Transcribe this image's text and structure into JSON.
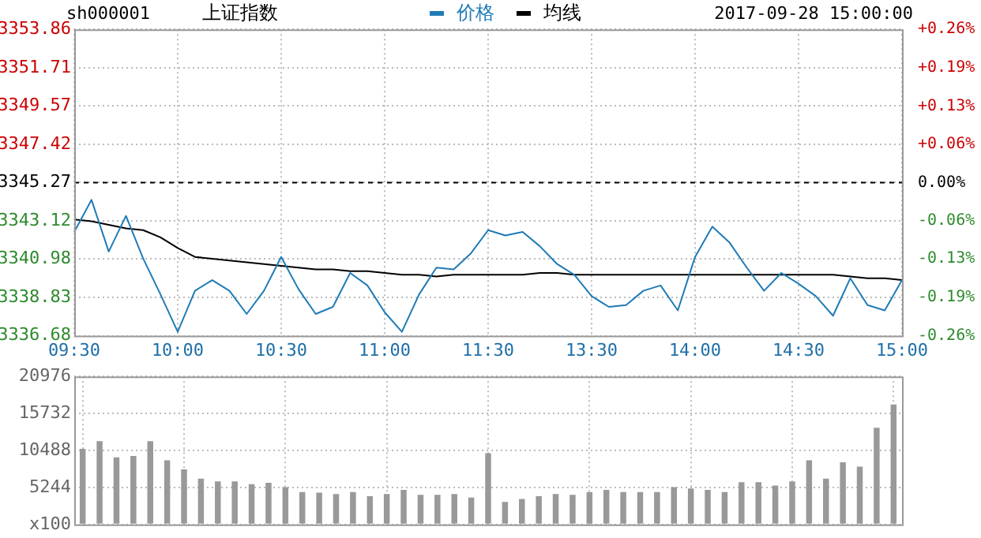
{
  "chart_data": [
    {
      "type": "line",
      "title": "上证指数",
      "subtitle": "sh000001",
      "annotations": [
        "2017-09-28 15:00:00"
      ],
      "categories": [
        "09:30",
        null,
        null,
        null,
        null,
        null,
        "10:00",
        null,
        null,
        null,
        null,
        null,
        "10:30",
        null,
        null,
        null,
        null,
        null,
        "11:00",
        null,
        null,
        null,
        null,
        null,
        "11:30",
        null,
        null,
        null,
        null,
        null,
        "13:30",
        null,
        null,
        null,
        null,
        null,
        "14:00",
        null,
        null,
        null,
        null,
        null,
        "14:30",
        null,
        null,
        null,
        null,
        null,
        "15:00"
      ],
      "series": [
        {
          "name": "价格",
          "color": "#1f7bb6",
          "values": [
            3342.5,
            3344.3,
            3341.4,
            3343.4,
            3341.0,
            3339.0,
            3336.9,
            3339.2,
            3339.8,
            3339.2,
            3337.9,
            3339.2,
            3341.1,
            3339.3,
            3337.9,
            3338.3,
            3340.2,
            3339.5,
            3338.0,
            3336.9,
            3339.0,
            3340.5,
            3340.4,
            3341.3,
            3342.6,
            3342.3,
            3342.5,
            3341.7,
            3340.7,
            3340.1,
            3338.9,
            3338.3,
            3338.4,
            3339.2,
            3339.5,
            3338.1,
            3341.1,
            3342.8,
            3341.9,
            3340.5,
            3339.2,
            3340.2,
            3339.6,
            3338.9,
            3337.8,
            3339.9,
            3338.4,
            3338.1,
            3339.8
          ]
        },
        {
          "name": "均线",
          "color": "#000000",
          "values": [
            3343.2,
            3343.1,
            3342.9,
            3342.7,
            3342.6,
            3342.2,
            3341.6,
            3341.1,
            3341.0,
            3340.9,
            3340.8,
            3340.7,
            3340.6,
            3340.5,
            3340.4,
            3340.4,
            3340.3,
            3340.3,
            3340.2,
            3340.1,
            3340.1,
            3340.0,
            3340.1,
            3340.1,
            3340.1,
            3340.1,
            3340.1,
            3340.2,
            3340.2,
            3340.1,
            3340.1,
            3340.1,
            3340.1,
            3340.1,
            3340.1,
            3340.1,
            3340.1,
            3340.1,
            3340.1,
            3340.1,
            3340.1,
            3340.1,
            3340.1,
            3340.1,
            3340.1,
            3340.0,
            3339.9,
            3339.9,
            3339.8
          ]
        }
      ],
      "ylim": [
        3336.68,
        3353.86
      ],
      "yticks": [
        3336.68,
        3338.83,
        3340.98,
        3343.12,
        3345.27,
        3347.42,
        3349.57,
        3351.71,
        3353.86
      ],
      "y2lim": [
        -0.257,
        0.257
      ],
      "y2ticks": [
        {
          "value": -0.257,
          "label": "-0.26%"
        },
        {
          "value": -0.193,
          "label": "-0.19%"
        },
        {
          "value": -0.128,
          "label": "-0.13%"
        },
        {
          "value": -0.064,
          "label": "-0.06%"
        },
        {
          "value": 0,
          "label": "0.00%"
        },
        {
          "value": 0.064,
          "label": "+0.06%"
        },
        {
          "value": 0.128,
          "label": "+0.13%"
        },
        {
          "value": 0.193,
          "label": "+0.19%"
        },
        {
          "value": 0.257,
          "label": "+0.26%"
        }
      ],
      "ref_lines": [
        {
          "axis": "y",
          "value": 3345.27,
          "line_style": "dashed",
          "color": "#000000"
        }
      ],
      "grid": true,
      "legend": "top",
      "marker": "none"
    },
    {
      "type": "bar",
      "tick_labels": "y",
      "categories": [
        null,
        null,
        null,
        null,
        null,
        null,
        null,
        null,
        null,
        null,
        null,
        null,
        null,
        null,
        null,
        null,
        null,
        null,
        null,
        null,
        null,
        null,
        null,
        null,
        null,
        null,
        null,
        null,
        null,
        null,
        null,
        null,
        null,
        null,
        null,
        null,
        null,
        null,
        null,
        null,
        null,
        null,
        null,
        null,
        null,
        null,
        null,
        null,
        null
      ],
      "color": "#999999",
      "values": [
        10700,
        11800,
        9500,
        9700,
        11800,
        9100,
        7800,
        6500,
        6100,
        6100,
        5700,
        5900,
        5300,
        4600,
        4500,
        4300,
        4600,
        4000,
        4300,
        4900,
        4200,
        4200,
        4300,
        3800,
        10100,
        3200,
        3600,
        4000,
        4300,
        4200,
        4600,
        4900,
        4600,
        4600,
        4600,
        5300,
        5100,
        4900,
        4600,
        6000,
        6000,
        5500,
        6100,
        9100,
        6500,
        8800,
        8200,
        13700,
        17000
      ],
      "ylim": [
        0,
        20976
      ],
      "yticks": [
        {
          "value": 0,
          "label": "x100"
        },
        5244,
        10488,
        15732,
        20976
      ],
      "grid": true
    }
  ]
}
